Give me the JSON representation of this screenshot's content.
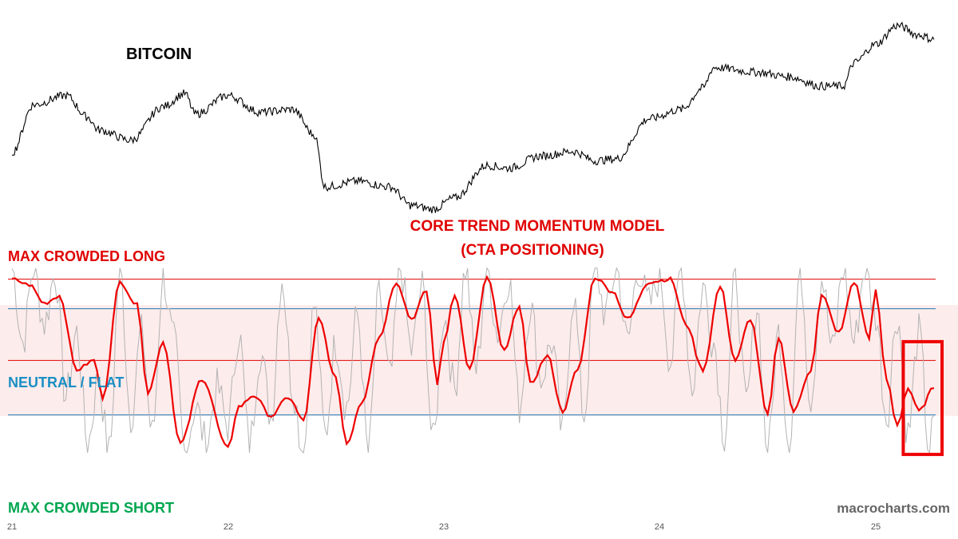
{
  "chart_data": {
    "type": "line",
    "panels": [
      {
        "name": "price",
        "title": "BITCOIN",
        "series": [
          {
            "name": "",
            "color": "#000000",
            "x": [
              21.0,
              21.1,
              21.25,
              21.35,
              21.4,
              21.55,
              21.7,
              21.8,
              21.85,
              22.0,
              22.15,
              22.3,
              22.4,
              22.45,
              22.6,
              22.75,
              22.85,
              22.95,
              23.05,
              23.2,
              23.3,
              23.45,
              23.6,
              23.7,
              23.8,
              23.95,
              24.1,
              24.2,
              24.25,
              24.45,
              24.6,
              24.75,
              24.85,
              24.9,
              25.0,
              25.1,
              25.2,
              25.27
            ],
            "y": [
              0.09,
              0.6,
              0.7,
              0.47,
              0.33,
              0.22,
              0.58,
              0.72,
              0.5,
              0.7,
              0.52,
              0.55,
              0.28,
              -0.28,
              -0.22,
              -0.28,
              -0.48,
              -0.52,
              -0.4,
              -0.05,
              -0.08,
              0.05,
              0.1,
              0.0,
              0.02,
              0.45,
              0.55,
              0.78,
              1.0,
              0.95,
              0.9,
              0.8,
              0.8,
              1.05,
              1.25,
              1.45,
              1.35,
              1.3
            ]
          }
        ]
      },
      {
        "name": "momentum",
        "title": "CORE TREND MOMENTUM MODEL",
        "subtitle": "(CTA POSITIONING)",
        "ylim": [
          -1.25,
          1.05
        ],
        "levels": [
          {
            "label": "MAX CROWDED LONG",
            "value": 0.88,
            "color": "#e00000"
          },
          {
            "label": "",
            "value": 0.56,
            "color": "#1f78b4"
          },
          {
            "label": "NEUTRAL / FLAT",
            "value": 0.0,
            "color": "#e00000"
          },
          {
            "label": "",
            "value": -0.59,
            "color": "#1f78b4"
          },
          {
            "label": "MAX CROWDED SHORT",
            "value": -1.1,
            "color": "#00a650"
          }
        ],
        "neutral_band": [
          -0.6,
          0.6
        ],
        "series": [
          {
            "name": "smoothed",
            "color": "#ee0000",
            "x": [
              21.0,
              21.08,
              21.15,
              21.22,
              21.3,
              21.38,
              21.42,
              21.5,
              21.58,
              21.63,
              21.7,
              21.78,
              21.88,
              22.0,
              22.05,
              22.12,
              22.2,
              22.28,
              22.35,
              22.42,
              22.5,
              22.55,
              22.62,
              22.7,
              22.78,
              22.85,
              22.92,
              22.97,
              23.0,
              23.05,
              23.12,
              23.2,
              23.28,
              23.35,
              23.4,
              23.48,
              23.55,
              23.62,
              23.7,
              23.78,
              23.85,
              23.95,
              24.05,
              24.12,
              24.2,
              24.28,
              24.35,
              24.42,
              24.5,
              24.55,
              24.62,
              24.7,
              24.75,
              24.83,
              24.9,
              24.97,
              25.0,
              25.05,
              25.1,
              25.15,
              25.2,
              25.27
            ],
            "y": [
              0.88,
              0.82,
              0.62,
              0.7,
              -0.1,
              0.0,
              -0.4,
              0.85,
              0.6,
              -0.35,
              0.2,
              -0.9,
              -0.2,
              -0.95,
              -0.5,
              -0.38,
              -0.6,
              -0.4,
              -0.65,
              0.45,
              -0.2,
              -0.9,
              -0.45,
              0.25,
              0.85,
              0.45,
              0.75,
              -0.25,
              0.2,
              0.72,
              -0.1,
              0.9,
              0.1,
              0.6,
              -0.25,
              0.05,
              -0.55,
              -0.1,
              0.9,
              0.75,
              0.45,
              0.85,
              0.88,
              0.4,
              -0.1,
              0.8,
              0.0,
              0.45,
              -0.6,
              0.25,
              -0.55,
              -0.1,
              0.7,
              0.3,
              0.85,
              0.25,
              0.75,
              -0.2,
              -0.7,
              -0.3,
              -0.55,
              -0.3
            ]
          },
          {
            "name": "raw",
            "color": "#b3b3b3",
            "x": [
              21.0,
              21.05,
              21.1,
              21.15,
              21.2,
              21.25,
              21.3,
              21.35,
              21.4,
              21.45,
              21.5,
              21.55,
              21.6,
              21.65,
              21.7,
              21.75,
              21.8,
              21.85,
              21.9,
              21.95,
              22.0,
              22.05,
              22.1,
              22.15,
              22.2,
              22.25,
              22.3,
              22.35,
              22.4,
              22.45,
              22.5,
              22.55,
              22.6,
              22.65,
              22.7,
              22.75,
              22.8,
              22.85,
              22.9,
              22.95,
              23.0,
              23.05,
              23.1,
              23.15,
              23.2,
              23.25,
              23.3,
              23.35,
              23.4,
              23.45,
              23.5,
              23.55,
              23.6,
              23.65,
              23.7,
              23.75,
              23.8,
              23.85,
              23.9,
              23.95,
              24.0,
              24.05,
              24.1,
              24.15,
              24.2,
              24.25,
              24.3,
              24.35,
              24.4,
              24.45,
              24.5,
              24.55,
              24.6,
              24.65,
              24.7,
              24.75,
              24.8,
              24.85,
              24.9,
              24.95,
              25.0,
              25.05,
              25.1,
              25.15,
              25.2,
              25.25,
              25.27
            ],
            "y": [
              1.0,
              0.2,
              1.0,
              0.4,
              0.95,
              -0.4,
              0.3,
              -0.9,
              -0.2,
              -1.0,
              1.0,
              -0.6,
              0.3,
              -0.8,
              0.9,
              0.2,
              -1.0,
              -0.5,
              -0.9,
              -0.3,
              -0.7,
              0.3,
              -0.9,
              0.1,
              -0.6,
              0.9,
              -0.3,
              -1.0,
              0.6,
              -0.8,
              0.2,
              -0.5,
              0.5,
              -1.0,
              0.7,
              -0.2,
              1.0,
              0.1,
              0.8,
              -0.9,
              0.5,
              -0.3,
              1.0,
              -0.1,
              1.0,
              0.3,
              0.9,
              -0.5,
              0.6,
              -0.2,
              0.2,
              -0.8,
              0.7,
              -0.6,
              1.0,
              0.5,
              1.0,
              0.2,
              1.0,
              0.6,
              0.9,
              0.0,
              1.0,
              -0.3,
              0.8,
              0.2,
              -0.8,
              0.9,
              -0.5,
              0.6,
              -1.0,
              0.3,
              -0.9,
              1.0,
              -0.4,
              0.9,
              0.1,
              1.0,
              0.2,
              1.0,
              0.5,
              -0.6,
              0.5,
              -0.8,
              0.3,
              -1.0,
              -0.6
            ]
          }
        ]
      }
    ],
    "x_ticks": [
      "21",
      "22",
      "23",
      "24",
      "25"
    ],
    "x_tick_values": [
      21,
      22,
      23,
      24,
      25
    ],
    "xlim": [
      21.0,
      25.3
    ],
    "highlight": {
      "x": [
        25.15,
        25.3
      ],
      "y": [
        -1.0,
        0.1
      ],
      "color": "#ee0000"
    },
    "watermark": "macrocharts.com",
    "colors": {
      "neutral_band": "#fdecec",
      "label_long": "#e00000",
      "label_neutral": "#1a8fc4",
      "label_short": "#00a650",
      "model_title": "#e00000",
      "price_title": "#000000",
      "watermark": "#666666"
    }
  }
}
